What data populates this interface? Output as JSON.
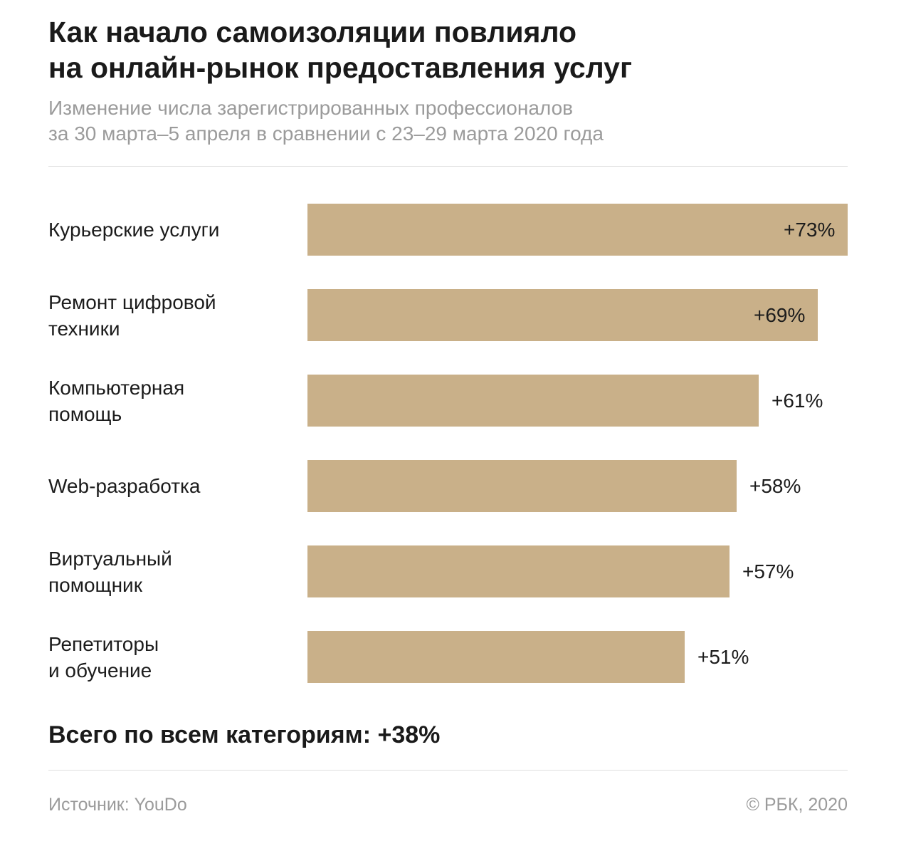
{
  "title": "Как начало самоизоляции повлияло\nна онлайн-рынок предоставления услуг",
  "subtitle": "Изменение числа зарегистрированных профессионалов\nза 30 марта–5 апреля в сравнении с 23–29 марта 2020 года",
  "chart_data": {
    "type": "bar",
    "orientation": "horizontal",
    "categories": [
      "Курьерские услуги",
      "Ремонт цифровой\nтехники",
      "Компьютерная\nпомощь",
      "Web-разработка",
      "Виртуальный\nпомощник",
      "Репетиторы\nи обучение"
    ],
    "values": [
      73,
      69,
      61,
      58,
      57,
      51
    ],
    "value_labels": [
      "+73%",
      "+69%",
      "+61%",
      "+58%",
      "+57%",
      "+51%"
    ],
    "grid": false,
    "bar_color": "#c9b089"
  },
  "total": "Всего по всем категориям: +38%",
  "footer": {
    "source": "Источник: YouDo",
    "copyright": "© РБК, 2020"
  }
}
